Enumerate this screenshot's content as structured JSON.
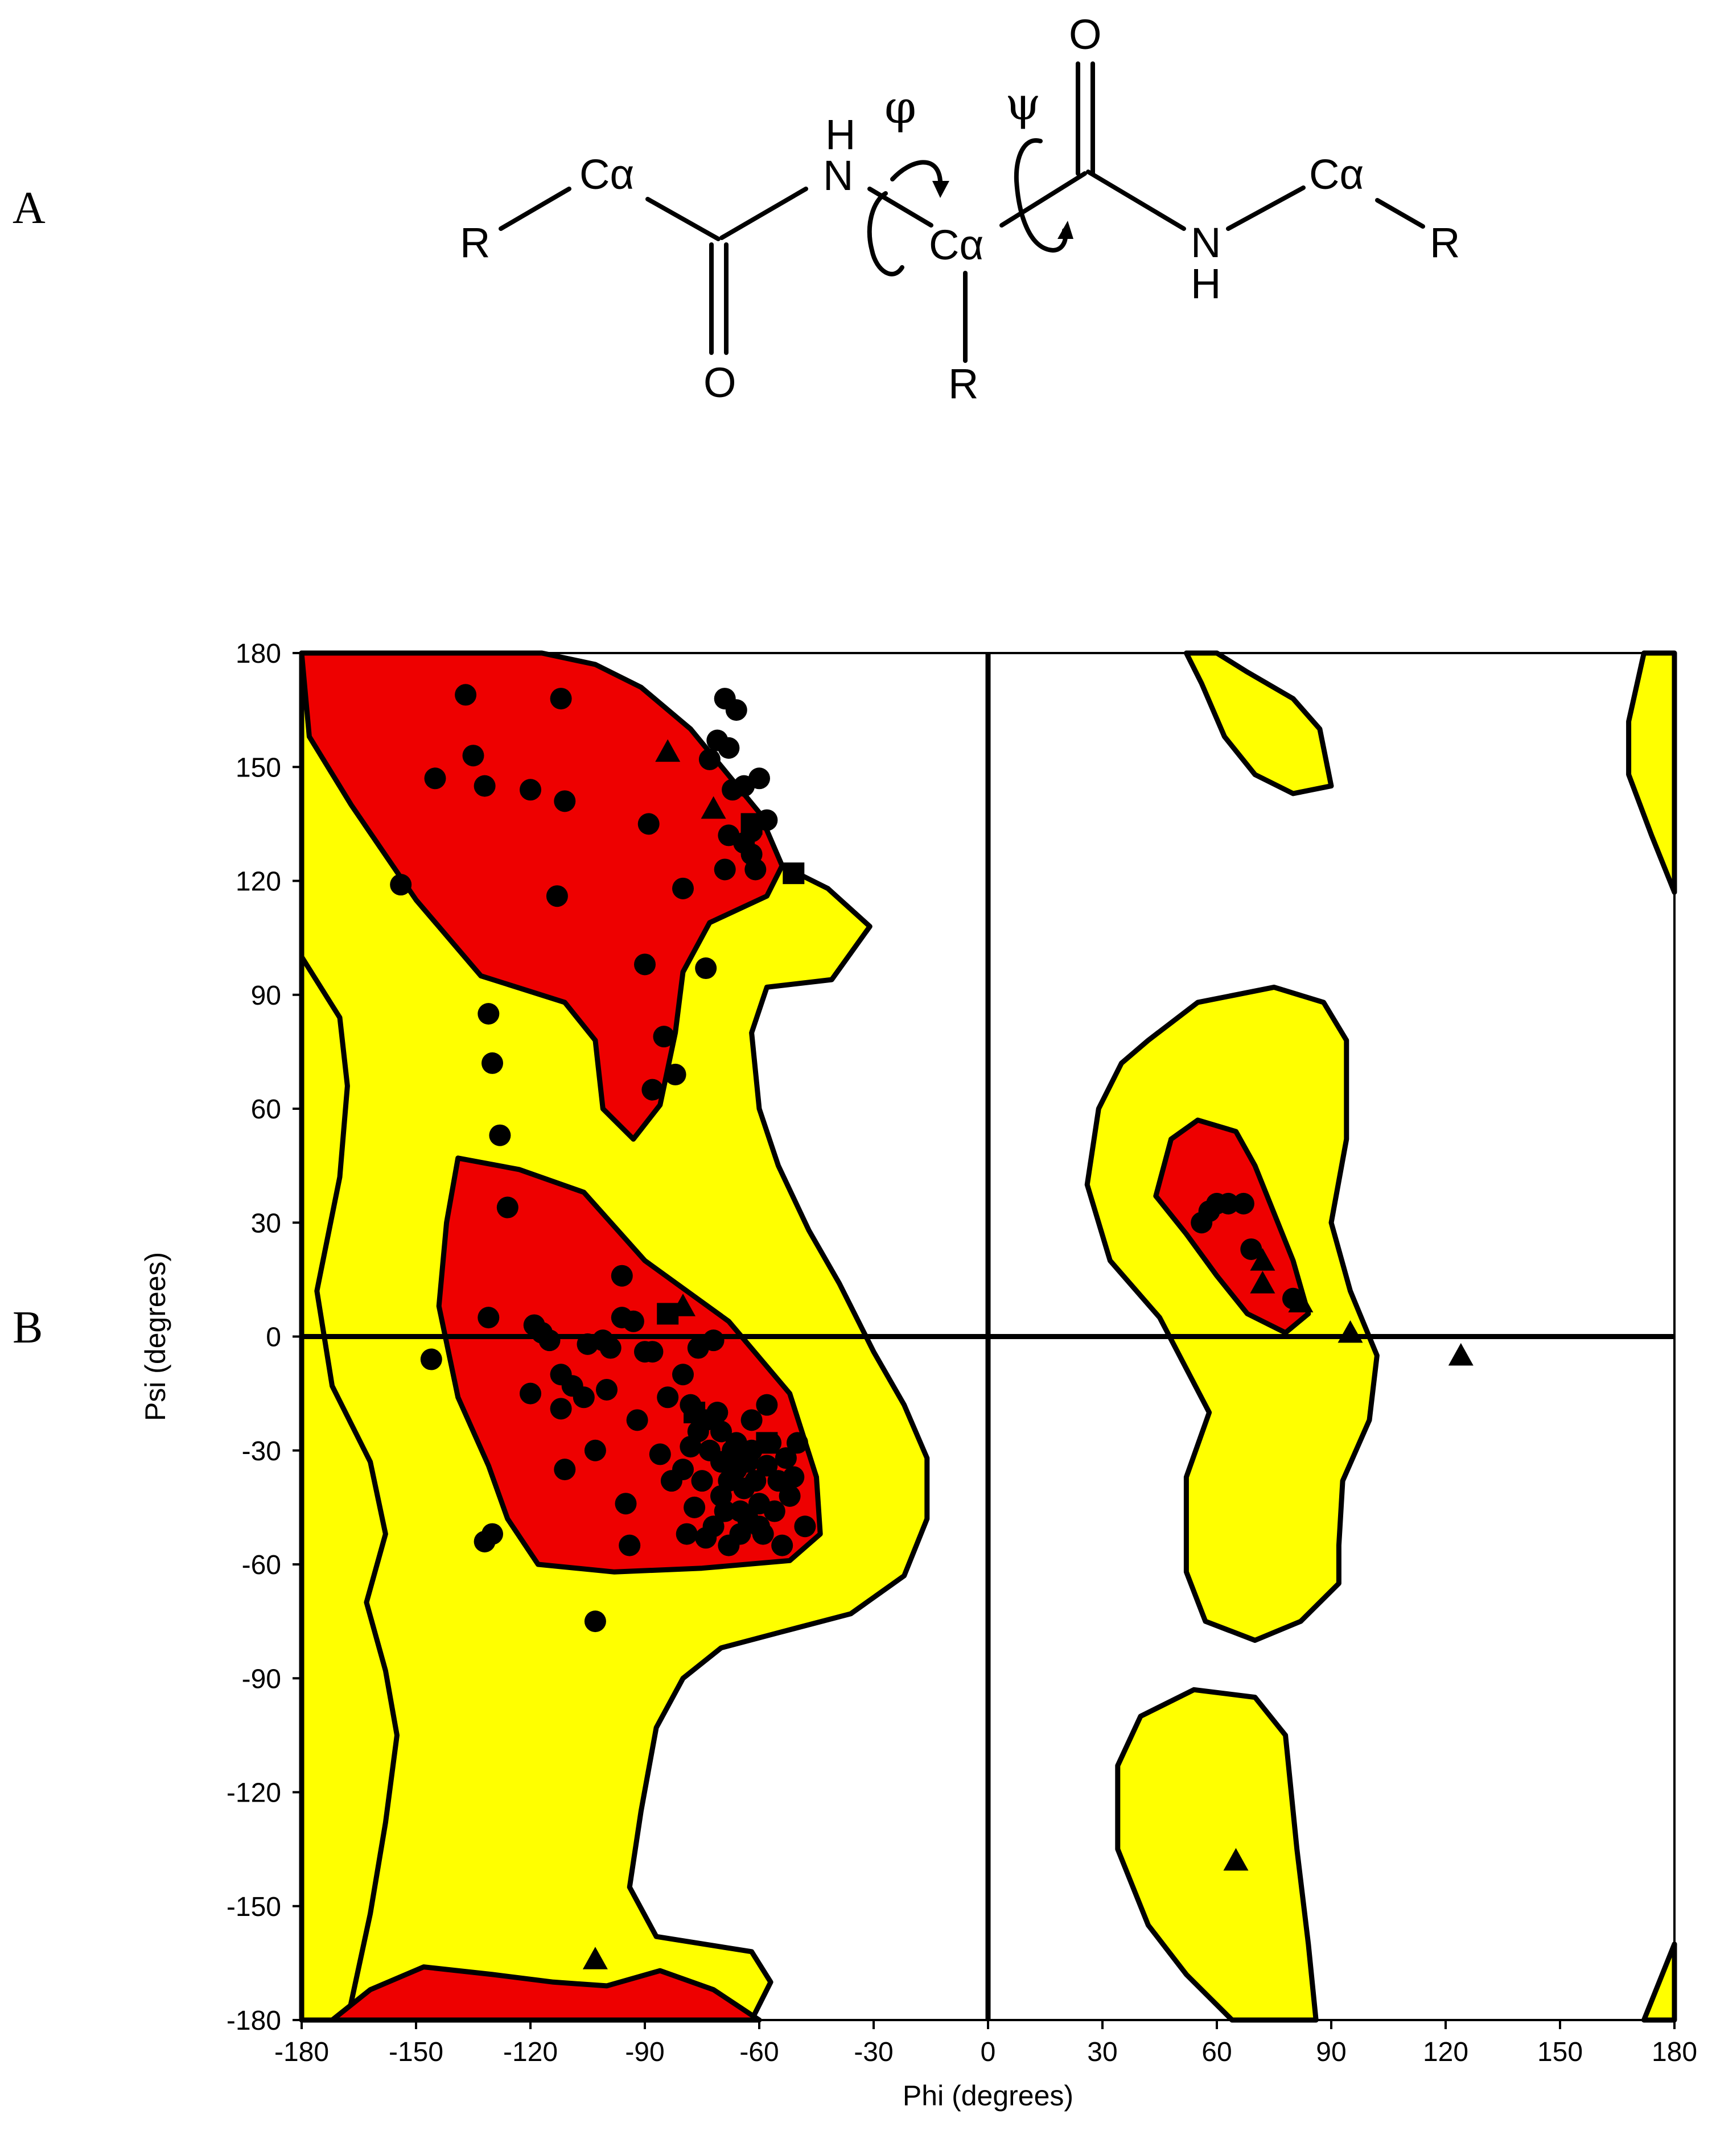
{
  "panels": {
    "a_label": "A",
    "b_label": "B"
  },
  "structure": {
    "atoms": {
      "r_left": "R",
      "ca_left": "Cα",
      "o_bottom_left": "O",
      "n_left": "N",
      "h_left": "H",
      "ca_center": "Cα",
      "r_center": "R",
      "o_top_right": "O",
      "n_right": "N",
      "h_right": "H",
      "ca_right": "Cα",
      "r_right": "R"
    },
    "phi_symbol": "φ",
    "psi_symbol": "ψ"
  },
  "chart_data": {
    "type": "scatter",
    "xlabel": "Phi (degrees)",
    "ylabel": "Psi (degrees)",
    "xlim": [
      -180,
      180
    ],
    "ylim": [
      -180,
      180
    ],
    "xticks": [
      -180,
      -150,
      -120,
      -90,
      -60,
      -30,
      0,
      30,
      60,
      90,
      120,
      150,
      180
    ],
    "yticks": [
      -180,
      -150,
      -120,
      -90,
      -60,
      -30,
      0,
      30,
      60,
      90,
      120,
      150,
      180
    ],
    "grid": false,
    "reference_lines": {
      "phi": 0,
      "psi": 0
    },
    "colors": {
      "favoured": "#ee0000",
      "allowed": "#ffff00",
      "marker": "#000000"
    },
    "regions": {
      "allowed": [
        [
          [
            -180,
            180
          ],
          [
            -144,
            180
          ],
          [
            -125,
            171
          ],
          [
            -110,
            158
          ],
          [
            -92,
            145
          ],
          [
            -75,
            135
          ],
          [
            -58,
            126
          ],
          [
            -42,
            118
          ],
          [
            -31,
            108
          ],
          [
            -41,
            94
          ],
          [
            -58,
            92
          ],
          [
            -62,
            80
          ],
          [
            -60,
            60
          ],
          [
            -55,
            45
          ],
          [
            -47,
            28
          ],
          [
            -39,
            14
          ],
          [
            -30,
            -4
          ],
          [
            -22,
            -18
          ],
          [
            -16,
            -32
          ],
          [
            -16,
            -48
          ],
          [
            -22,
            -63
          ],
          [
            -36,
            -73
          ],
          [
            -55,
            -78
          ],
          [
            -70,
            -82
          ],
          [
            -80,
            -90
          ],
          [
            -87,
            -103
          ],
          [
            -91,
            -125
          ],
          [
            -94,
            -145
          ],
          [
            -87,
            -158
          ],
          [
            -62,
            -162
          ],
          [
            -57,
            -170
          ],
          [
            -62,
            -180
          ],
          [
            -180,
            -180
          ]
        ],
        [
          [
            -180,
            180
          ],
          [
            -180,
            -180
          ],
          [
            -168,
            -180
          ],
          [
            -162,
            -152
          ],
          [
            -158,
            -128
          ],
          [
            -155,
            -105
          ],
          [
            -158,
            -88
          ],
          [
            -163,
            -70
          ],
          [
            -158,
            -52
          ],
          [
            -162,
            -33
          ],
          [
            -172,
            -13
          ],
          [
            -176,
            12
          ],
          [
            -170,
            42
          ],
          [
            -168,
            66
          ],
          [
            -170,
            84
          ],
          [
            -180,
            100
          ]
        ],
        [
          [
            60,
            180
          ],
          [
            68,
            175
          ],
          [
            80,
            168
          ],
          [
            87,
            160
          ],
          [
            90,
            145
          ],
          [
            80,
            143
          ],
          [
            70,
            148
          ],
          [
            62,
            158
          ],
          [
            56,
            172
          ],
          [
            52,
            180
          ]
        ],
        [
          [
            172,
            180
          ],
          [
            180,
            180
          ],
          [
            180,
            117
          ],
          [
            174,
            132
          ],
          [
            168,
            148
          ],
          [
            168,
            162
          ]
        ],
        [
          [
            42,
            78
          ],
          [
            55,
            88
          ],
          [
            75,
            92
          ],
          [
            88,
            88
          ],
          [
            94,
            78
          ],
          [
            94,
            52
          ],
          [
            90,
            30
          ],
          [
            95,
            12
          ],
          [
            102,
            -5
          ],
          [
            100,
            -22
          ],
          [
            93,
            -38
          ],
          [
            92,
            -55
          ],
          [
            92,
            -65
          ],
          [
            82,
            -75
          ],
          [
            70,
            -80
          ],
          [
            57,
            -75
          ],
          [
            52,
            -62
          ],
          [
            52,
            -37
          ],
          [
            58,
            -20
          ],
          [
            45,
            5
          ],
          [
            32,
            20
          ],
          [
            26,
            40
          ],
          [
            29,
            60
          ],
          [
            35,
            72
          ]
        ],
        [
          [
            34,
            -113
          ],
          [
            40,
            -100
          ],
          [
            54,
            -93
          ],
          [
            70,
            -95
          ],
          [
            78,
            -105
          ],
          [
            81,
            -135
          ],
          [
            84,
            -160
          ],
          [
            86,
            -180
          ],
          [
            64,
            -180
          ],
          [
            52,
            -168
          ],
          [
            42,
            -155
          ],
          [
            34,
            -135
          ]
        ],
        [
          [
            172,
            -180
          ],
          [
            180,
            -180
          ],
          [
            180,
            -160
          ],
          [
            176,
            -170
          ]
        ]
      ],
      "favoured": [
        [
          [
            -180,
            180
          ],
          [
            -117,
            180
          ],
          [
            -103,
            177
          ],
          [
            -91,
            171
          ],
          [
            -78,
            160
          ],
          [
            -60,
            138
          ],
          [
            -54,
            124
          ],
          [
            -58,
            116
          ],
          [
            -73,
            109
          ],
          [
            -80,
            96
          ],
          [
            -82,
            80
          ],
          [
            -86,
            61
          ],
          [
            -93,
            52
          ],
          [
            -101,
            60
          ],
          [
            -103,
            78
          ],
          [
            -111,
            88
          ],
          [
            -133,
            95
          ],
          [
            -150,
            115
          ],
          [
            -167,
            140
          ],
          [
            -178,
            158
          ]
        ],
        [
          [
            -139,
            47
          ],
          [
            -123,
            44
          ],
          [
            -106,
            38
          ],
          [
            -90,
            20
          ],
          [
            -68,
            4
          ],
          [
            -52,
            -15
          ],
          [
            -45,
            -37
          ],
          [
            -44,
            -52
          ],
          [
            -52,
            -59
          ],
          [
            -75,
            -61
          ],
          [
            -98,
            -62
          ],
          [
            -118,
            -60
          ],
          [
            -126,
            -48
          ],
          [
            -131,
            -34
          ],
          [
            -139,
            -16
          ],
          [
            -144,
            8
          ],
          [
            -142,
            30
          ]
        ],
        [
          [
            44,
            37
          ],
          [
            48,
            52
          ],
          [
            55,
            57
          ],
          [
            65,
            54
          ],
          [
            70,
            45
          ],
          [
            80,
            20
          ],
          [
            84,
            6
          ],
          [
            78,
            1
          ],
          [
            68,
            6
          ],
          [
            60,
            16
          ],
          [
            52,
            27
          ]
        ],
        [
          [
            -172,
            -180
          ],
          [
            -60,
            -180
          ],
          [
            -72,
            -172
          ],
          [
            -86,
            -167
          ],
          [
            -100,
            -171
          ],
          [
            -114,
            -170
          ],
          [
            -130,
            -168
          ],
          [
            -148,
            -166
          ],
          [
            -162,
            -172
          ]
        ]
      ]
    },
    "series": [
      {
        "marker": "circle",
        "points": [
          [
            -137,
            169
          ],
          [
            -112,
            168
          ],
          [
            -135,
            153
          ],
          [
            -145,
            147
          ],
          [
            -132,
            145
          ],
          [
            -120,
            144
          ],
          [
            -111,
            141
          ],
          [
            -154,
            119
          ],
          [
            -113,
            116
          ],
          [
            -89,
            135
          ],
          [
            -90,
            98
          ],
          [
            -85,
            79
          ],
          [
            -82,
            69
          ],
          [
            -88,
            65
          ],
          [
            -80,
            118
          ],
          [
            -74,
            97
          ],
          [
            -69,
            168
          ],
          [
            -66,
            165
          ],
          [
            -71,
            157
          ],
          [
            -73,
            152
          ],
          [
            -68,
            155
          ],
          [
            -60,
            147
          ],
          [
            -64,
            145
          ],
          [
            -67,
            144
          ],
          [
            -58,
            136
          ],
          [
            -68,
            132
          ],
          [
            -62,
            133
          ],
          [
            -62,
            127
          ],
          [
            -61,
            123
          ],
          [
            -69,
            123
          ],
          [
            -64,
            130
          ],
          [
            -131,
            85
          ],
          [
            -130,
            72
          ],
          [
            -128,
            53
          ],
          [
            -126,
            34
          ],
          [
            -96,
            16
          ],
          [
            -131,
            5
          ],
          [
            -119,
            3
          ],
          [
            -117,
            1
          ],
          [
            -115,
            -1
          ],
          [
            -105,
            -2
          ],
          [
            -101,
            -1
          ],
          [
            -96,
            5
          ],
          [
            -93,
            4
          ],
          [
            -99,
            -3
          ],
          [
            -90,
            -4
          ],
          [
            -146,
            -6
          ],
          [
            -112,
            -10
          ],
          [
            -109,
            -13
          ],
          [
            -106,
            -16
          ],
          [
            -100,
            -14
          ],
          [
            -120,
            -15
          ],
          [
            -112,
            -19
          ],
          [
            -92,
            -22
          ],
          [
            -103,
            -30
          ],
          [
            -111,
            -35
          ],
          [
            -95,
            -44
          ],
          [
            -94,
            -55
          ],
          [
            -130,
            -52
          ],
          [
            -132,
            -54
          ],
          [
            -103,
            -75
          ],
          [
            -80,
            -10
          ],
          [
            -84,
            -16
          ],
          [
            -78,
            -18
          ],
          [
            -74,
            -22
          ],
          [
            -70,
            -25
          ],
          [
            -66,
            -28
          ],
          [
            -62,
            -30
          ],
          [
            -58,
            -34
          ],
          [
            -55,
            -38
          ],
          [
            -52,
            -42
          ],
          [
            -50,
            -28
          ],
          [
            -48,
            -50
          ],
          [
            -54,
            -55
          ],
          [
            -60,
            -50
          ],
          [
            -65,
            -46
          ],
          [
            -70,
            -42
          ],
          [
            -75,
            -38
          ],
          [
            -80,
            -35
          ],
          [
            -77,
            -45
          ],
          [
            -72,
            -50
          ],
          [
            -68,
            -55
          ],
          [
            -62,
            -22
          ],
          [
            -58,
            -18
          ],
          [
            -66,
            -35
          ],
          [
            -70,
            -33
          ],
          [
            -64,
            -40
          ],
          [
            -60,
            -44
          ],
          [
            -56,
            -46
          ],
          [
            -73,
            -30
          ],
          [
            -68,
            -38
          ],
          [
            -63,
            -48
          ],
          [
            -59,
            -52
          ],
          [
            -74,
            -53
          ],
          [
            -67,
            -30
          ],
          [
            -71,
            -20
          ],
          [
            -76,
            -25
          ],
          [
            -83,
            -38
          ],
          [
            -79,
            -52
          ],
          [
            -53,
            -32
          ],
          [
            -51,
            -37
          ],
          [
            -57,
            -28
          ],
          [
            -61,
            -38
          ],
          [
            -65,
            -52
          ],
          [
            -69,
            -46
          ],
          [
            -63,
            -33
          ],
          [
            -78,
            -29
          ],
          [
            -86,
            -31
          ],
          [
            -88,
            -4
          ],
          [
            -76,
            -3
          ],
          [
            -72,
            -1
          ],
          [
            56,
            30
          ],
          [
            58,
            33
          ],
          [
            60,
            35
          ],
          [
            63,
            35
          ],
          [
            67,
            35
          ],
          [
            69,
            23
          ],
          [
            80,
            10
          ]
        ]
      },
      {
        "marker": "triangle",
        "points": [
          [
            -84,
            154
          ],
          [
            -72,
            139
          ],
          [
            -80,
            8
          ],
          [
            -103,
            -164
          ],
          [
            72,
            20
          ],
          [
            72,
            14
          ],
          [
            82,
            9
          ],
          [
            95,
            1
          ],
          [
            124,
            -5
          ],
          [
            65,
            -138
          ]
        ]
      },
      {
        "marker": "square",
        "points": [
          [
            -62,
            135
          ],
          [
            -51,
            122
          ],
          [
            -84,
            6
          ],
          [
            -77,
            -20
          ],
          [
            -58,
            -28
          ]
        ]
      }
    ]
  }
}
